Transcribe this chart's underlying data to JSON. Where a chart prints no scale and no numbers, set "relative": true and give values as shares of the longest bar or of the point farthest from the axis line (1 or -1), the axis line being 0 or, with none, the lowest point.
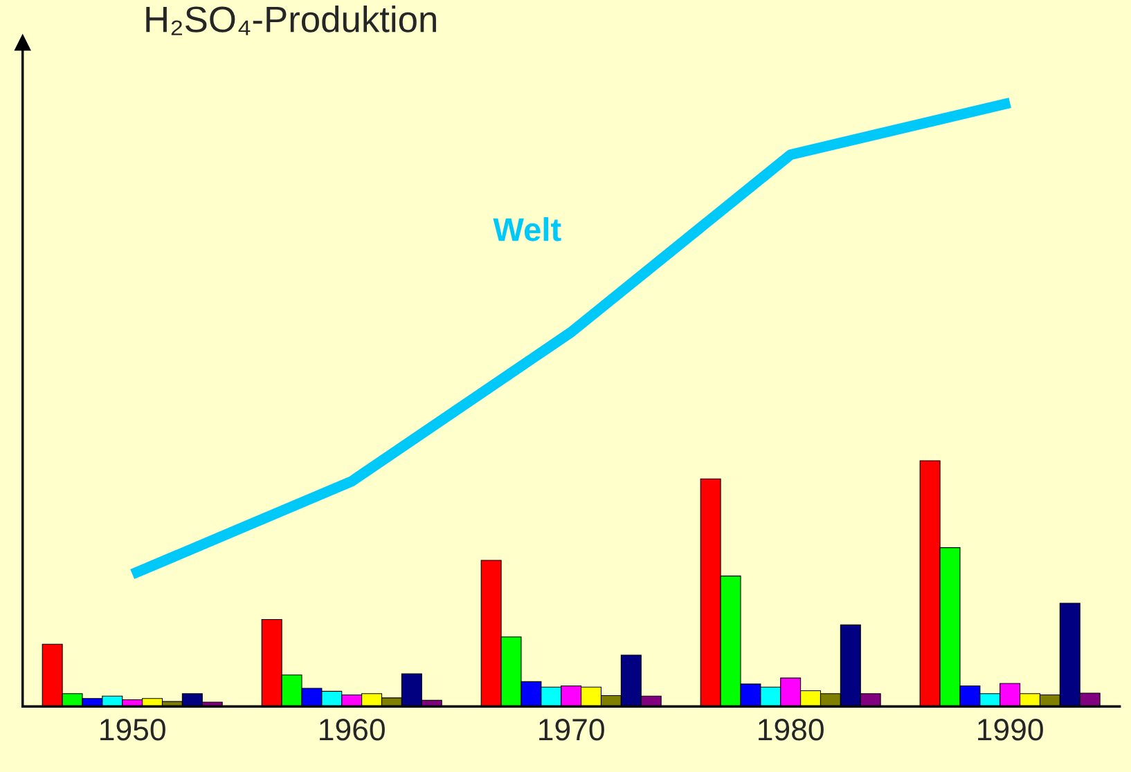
{
  "chart_data": {
    "type": "bar",
    "title": "H₂SO₄-Produktion",
    "relative": true,
    "categories": [
      "1950",
      "1960",
      "1970",
      "1980",
      "1990"
    ],
    "series": [
      {
        "color": "#ff0000",
        "values": [
          0.103,
          0.144,
          0.242,
          0.377,
          0.407
        ]
      },
      {
        "color": "#00ff00",
        "values": [
          0.021,
          0.052,
          0.115,
          0.216,
          0.263
        ]
      },
      {
        "color": "#0000ff",
        "values": [
          0.013,
          0.03,
          0.041,
          0.037,
          0.034
        ]
      },
      {
        "color": "#00ffff",
        "values": [
          0.017,
          0.025,
          0.032,
          0.032,
          0.021
        ]
      },
      {
        "color": "#ff00ff",
        "values": [
          0.011,
          0.019,
          0.034,
          0.047,
          0.038
        ]
      },
      {
        "color": "#ffff00",
        "values": [
          0.013,
          0.021,
          0.032,
          0.026,
          0.021
        ]
      },
      {
        "color": "#808000",
        "values": [
          0.008,
          0.014,
          0.018,
          0.021,
          0.019
        ]
      },
      {
        "color": "#000080",
        "values": [
          0.021,
          0.054,
          0.085,
          0.135,
          0.171
        ]
      },
      {
        "color": "#800080",
        "values": [
          0.007,
          0.01,
          0.017,
          0.021,
          0.022
        ]
      },
      {
        "type": "line",
        "name": "Welt",
        "color": "#00c8f8",
        "values": [
          0.219,
          0.373,
          0.62,
          0.914,
          1.0
        ]
      }
    ],
    "grid": false,
    "legend": false
  }
}
